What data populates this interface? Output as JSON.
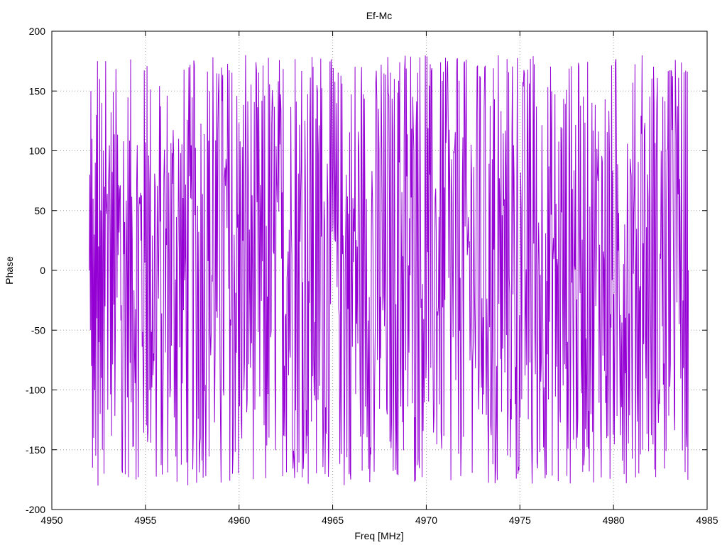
{
  "chart_data": {
    "type": "line",
    "title": "Ef-Mc",
    "xlabel": "Freq [MHz]",
    "ylabel": "Phase",
    "xlim": [
      4950,
      4985
    ],
    "ylim": [
      -200,
      200
    ],
    "xticks": [
      4950,
      4955,
      4960,
      4965,
      4970,
      4975,
      4980,
      4985
    ],
    "yticks": [
      -200,
      -150,
      -100,
      -50,
      0,
      50,
      100,
      150,
      200
    ],
    "xtick_labels": [
      "4950",
      "4955",
      "4960",
      "4965",
      "4970",
      "4975",
      "4980",
      "4985"
    ],
    "ytick_labels": [
      "-200",
      "-150",
      "-100",
      "-50",
      "0",
      "50",
      "100",
      "150",
      "200"
    ],
    "grid": true,
    "series": [
      {
        "color": "#9400d3",
        "x_start": 4952.0,
        "x_end": 4984.0,
        "note_values": "phase wraps rapidly between about -180 and 180",
        "x": [
          4952.0,
          4952.1,
          4952.2,
          4952.3,
          4952.4,
          4952.5,
          4952.6,
          4952.7,
          4952.8,
          4952.9,
          4953.0,
          4953.1,
          4953.2,
          4953.3,
          4953.4,
          4953.5,
          4953.6,
          4953.7,
          4953.8,
          4953.9,
          4954.0,
          4954.1,
          4954.2,
          4954.3,
          4954.4,
          4954.5,
          4954.6,
          4954.7,
          4954.8,
          4954.9,
          4955.0
        ],
        "y": [
          0,
          80,
          -50,
          150,
          -80,
          110,
          -165,
          60,
          -140,
          30,
          -100,
          90,
          -155,
          130,
          -40,
          175,
          -180,
          20,
          -60,
          160,
          -120,
          50,
          -90,
          140,
          -150,
          10,
          100,
          -170,
          70,
          -30,
          175
        ]
      }
    ]
  }
}
